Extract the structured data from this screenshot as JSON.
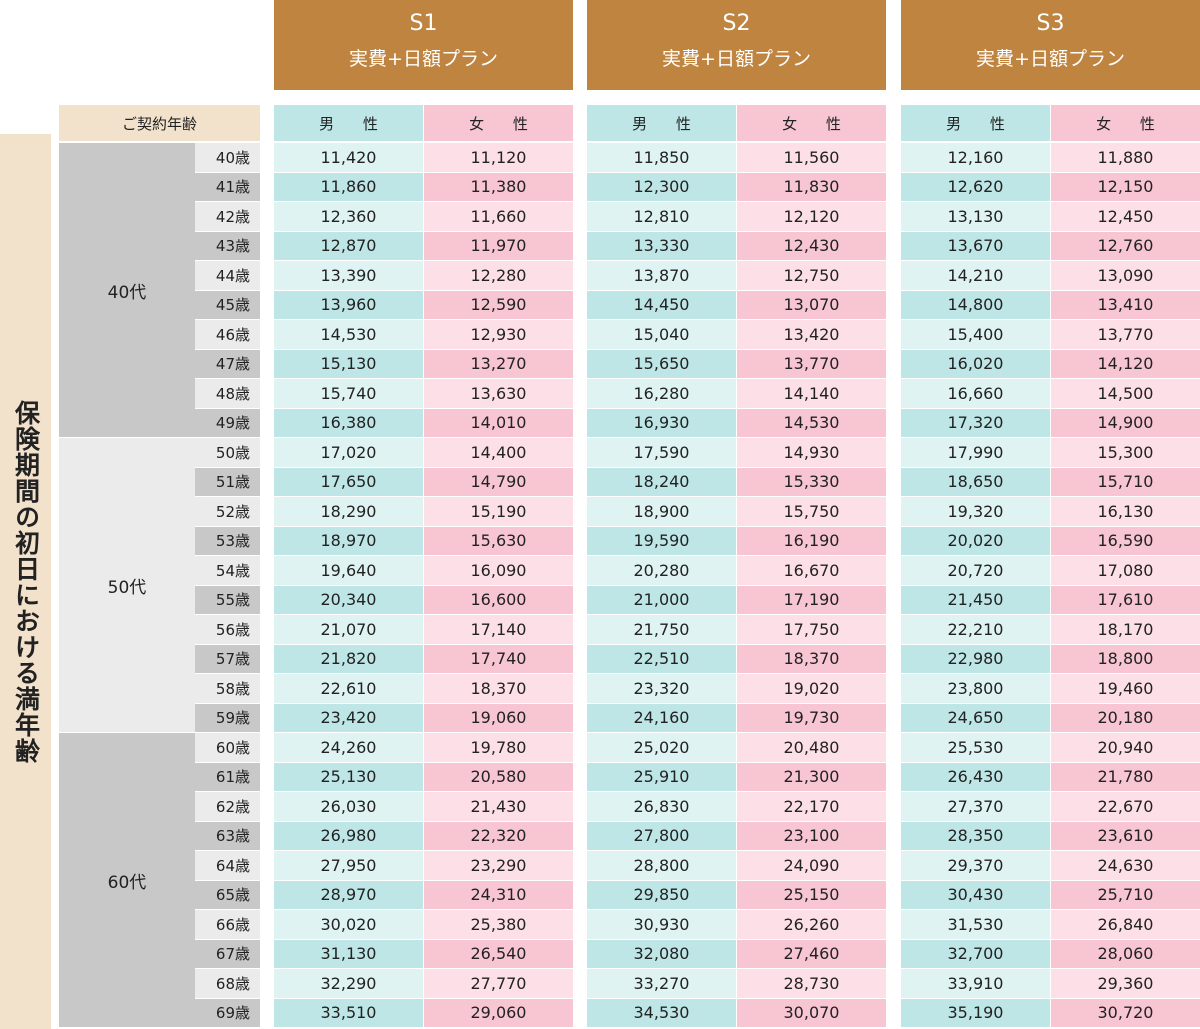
{
  "plans": [
    {
      "code": "S1",
      "name": "実費+日額プラン"
    },
    {
      "code": "S2",
      "name": "実費+日額プラン"
    },
    {
      "code": "S3",
      "name": "実費+日額プラン"
    }
  ],
  "side_label": "保険期間の初日における満年齢",
  "age_header": "ご契約年齢",
  "gender_male": "男 性",
  "gender_female": "女 性",
  "decades": [
    {
      "label": "40代",
      "start": 40,
      "count": 10
    },
    {
      "label": "50代",
      "start": 50,
      "count": 10
    },
    {
      "label": "60代",
      "start": 60,
      "count": 10
    }
  ],
  "colors": {
    "plan_header": "#be8440",
    "label_bg": "#f2e2cc",
    "male_light": "#dff3f3",
    "male_dark": "#bfe6e6",
    "female_light": "#fde0e7",
    "female_dark": "#f7c6d2",
    "decade_40_60": "#c8c8c8",
    "decade_50": "#ebebeb"
  },
  "rows": [
    {
      "age": "40歳",
      "s1m": "11,420",
      "s1f": "11,120",
      "s2m": "11,850",
      "s2f": "11,560",
      "s3m": "12,160",
      "s3f": "11,880"
    },
    {
      "age": "41歳",
      "s1m": "11,860",
      "s1f": "11,380",
      "s2m": "12,300",
      "s2f": "11,830",
      "s3m": "12,620",
      "s3f": "12,150"
    },
    {
      "age": "42歳",
      "s1m": "12,360",
      "s1f": "11,660",
      "s2m": "12,810",
      "s2f": "12,120",
      "s3m": "13,130",
      "s3f": "12,450"
    },
    {
      "age": "43歳",
      "s1m": "12,870",
      "s1f": "11,970",
      "s2m": "13,330",
      "s2f": "12,430",
      "s3m": "13,670",
      "s3f": "12,760"
    },
    {
      "age": "44歳",
      "s1m": "13,390",
      "s1f": "12,280",
      "s2m": "13,870",
      "s2f": "12,750",
      "s3m": "14,210",
      "s3f": "13,090"
    },
    {
      "age": "45歳",
      "s1m": "13,960",
      "s1f": "12,590",
      "s2m": "14,450",
      "s2f": "13,070",
      "s3m": "14,800",
      "s3f": "13,410"
    },
    {
      "age": "46歳",
      "s1m": "14,530",
      "s1f": "12,930",
      "s2m": "15,040",
      "s2f": "13,420",
      "s3m": "15,400",
      "s3f": "13,770"
    },
    {
      "age": "47歳",
      "s1m": "15,130",
      "s1f": "13,270",
      "s2m": "15,650",
      "s2f": "13,770",
      "s3m": "16,020",
      "s3f": "14,120"
    },
    {
      "age": "48歳",
      "s1m": "15,740",
      "s1f": "13,630",
      "s2m": "16,280",
      "s2f": "14,140",
      "s3m": "16,660",
      "s3f": "14,500"
    },
    {
      "age": "49歳",
      "s1m": "16,380",
      "s1f": "14,010",
      "s2m": "16,930",
      "s2f": "14,530",
      "s3m": "17,320",
      "s3f": "14,900"
    },
    {
      "age": "50歳",
      "s1m": "17,020",
      "s1f": "14,400",
      "s2m": "17,590",
      "s2f": "14,930",
      "s3m": "17,990",
      "s3f": "15,300"
    },
    {
      "age": "51歳",
      "s1m": "17,650",
      "s1f": "14,790",
      "s2m": "18,240",
      "s2f": "15,330",
      "s3m": "18,650",
      "s3f": "15,710"
    },
    {
      "age": "52歳",
      "s1m": "18,290",
      "s1f": "15,190",
      "s2m": "18,900",
      "s2f": "15,750",
      "s3m": "19,320",
      "s3f": "16,130"
    },
    {
      "age": "53歳",
      "s1m": "18,970",
      "s1f": "15,630",
      "s2m": "19,590",
      "s2f": "16,190",
      "s3m": "20,020",
      "s3f": "16,590"
    },
    {
      "age": "54歳",
      "s1m": "19,640",
      "s1f": "16,090",
      "s2m": "20,280",
      "s2f": "16,670",
      "s3m": "20,720",
      "s3f": "17,080"
    },
    {
      "age": "55歳",
      "s1m": "20,340",
      "s1f": "16,600",
      "s2m": "21,000",
      "s2f": "17,190",
      "s3m": "21,450",
      "s3f": "17,610"
    },
    {
      "age": "56歳",
      "s1m": "21,070",
      "s1f": "17,140",
      "s2m": "21,750",
      "s2f": "17,750",
      "s3m": "22,210",
      "s3f": "18,170"
    },
    {
      "age": "57歳",
      "s1m": "21,820",
      "s1f": "17,740",
      "s2m": "22,510",
      "s2f": "18,370",
      "s3m": "22,980",
      "s3f": "18,800"
    },
    {
      "age": "58歳",
      "s1m": "22,610",
      "s1f": "18,370",
      "s2m": "23,320",
      "s2f": "19,020",
      "s3m": "23,800",
      "s3f": "19,460"
    },
    {
      "age": "59歳",
      "s1m": "23,420",
      "s1f": "19,060",
      "s2m": "24,160",
      "s2f": "19,730",
      "s3m": "24,650",
      "s3f": "20,180"
    },
    {
      "age": "60歳",
      "s1m": "24,260",
      "s1f": "19,780",
      "s2m": "25,020",
      "s2f": "20,480",
      "s3m": "25,530",
      "s3f": "20,940"
    },
    {
      "age": "61歳",
      "s1m": "25,130",
      "s1f": "20,580",
      "s2m": "25,910",
      "s2f": "21,300",
      "s3m": "26,430",
      "s3f": "21,780"
    },
    {
      "age": "62歳",
      "s1m": "26,030",
      "s1f": "21,430",
      "s2m": "26,830",
      "s2f": "22,170",
      "s3m": "27,370",
      "s3f": "22,670"
    },
    {
      "age": "63歳",
      "s1m": "26,980",
      "s1f": "22,320",
      "s2m": "27,800",
      "s2f": "23,100",
      "s3m": "28,350",
      "s3f": "23,610"
    },
    {
      "age": "64歳",
      "s1m": "27,950",
      "s1f": "23,290",
      "s2m": "28,800",
      "s2f": "24,090",
      "s3m": "29,370",
      "s3f": "24,630"
    },
    {
      "age": "65歳",
      "s1m": "28,970",
      "s1f": "24,310",
      "s2m": "29,850",
      "s2f": "25,150",
      "s3m": "30,430",
      "s3f": "25,710"
    },
    {
      "age": "66歳",
      "s1m": "30,020",
      "s1f": "25,380",
      "s2m": "30,930",
      "s2f": "26,260",
      "s3m": "31,530",
      "s3f": "26,840"
    },
    {
      "age": "67歳",
      "s1m": "31,130",
      "s1f": "26,540",
      "s2m": "32,080",
      "s2f": "27,460",
      "s3m": "32,700",
      "s3f": "28,060"
    },
    {
      "age": "68歳",
      "s1m": "32,290",
      "s1f": "27,770",
      "s2m": "33,270",
      "s2f": "28,730",
      "s3m": "33,910",
      "s3f": "29,360"
    },
    {
      "age": "69歳",
      "s1m": "33,510",
      "s1f": "29,060",
      "s2m": "34,530",
      "s2f": "30,070",
      "s3m": "35,190",
      "s3f": "30,720"
    }
  ]
}
